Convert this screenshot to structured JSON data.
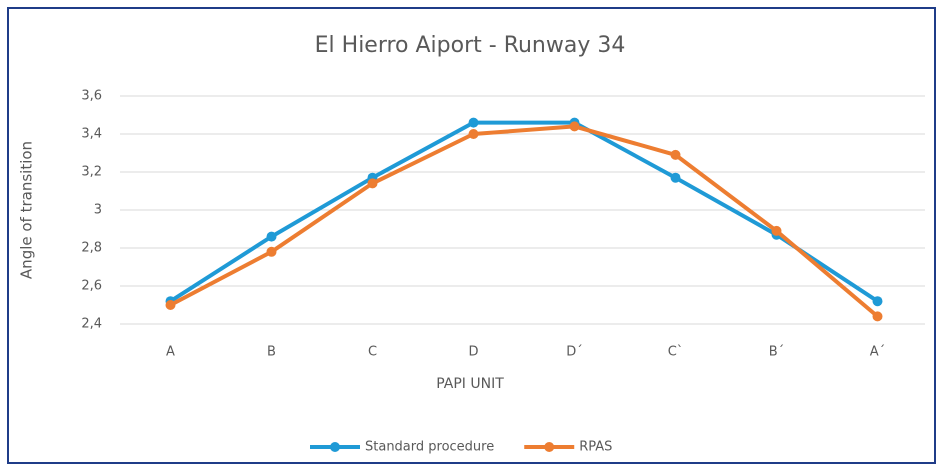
{
  "chart_data": {
    "type": "line",
    "title": "El Hierro Aiport - Runway 34",
    "x_label": "PAPI UNIT",
    "y_label": "Angle of transition",
    "categories": [
      "A",
      "B",
      "C",
      "D",
      "D´",
      "C`",
      "B´",
      "A´"
    ],
    "series": [
      {
        "name": "Standard procedure",
        "color": "#1f9ad6",
        "values": [
          2.52,
          2.86,
          3.17,
          3.46,
          3.46,
          3.17,
          2.87,
          2.52
        ]
      },
      {
        "name": "RPAS",
        "color": "#ed7d31",
        "values": [
          2.5,
          2.78,
          3.14,
          3.4,
          3.44,
          3.29,
          2.89,
          2.44
        ]
      }
    ],
    "ylim": [
      2.4,
      3.6
    ],
    "yticks": [
      {
        "value": 2.4,
        "label": "2,4"
      },
      {
        "value": 2.6,
        "label": "2,6"
      },
      {
        "value": 2.8,
        "label": "2,8"
      },
      3,
      {
        "value": 3.2,
        "label": "3,2"
      },
      {
        "value": 3.4,
        "label": "3,4"
      },
      {
        "value": 3.6,
        "label": "3,6"
      }
    ],
    "grid": true,
    "legend": "bottom"
  }
}
